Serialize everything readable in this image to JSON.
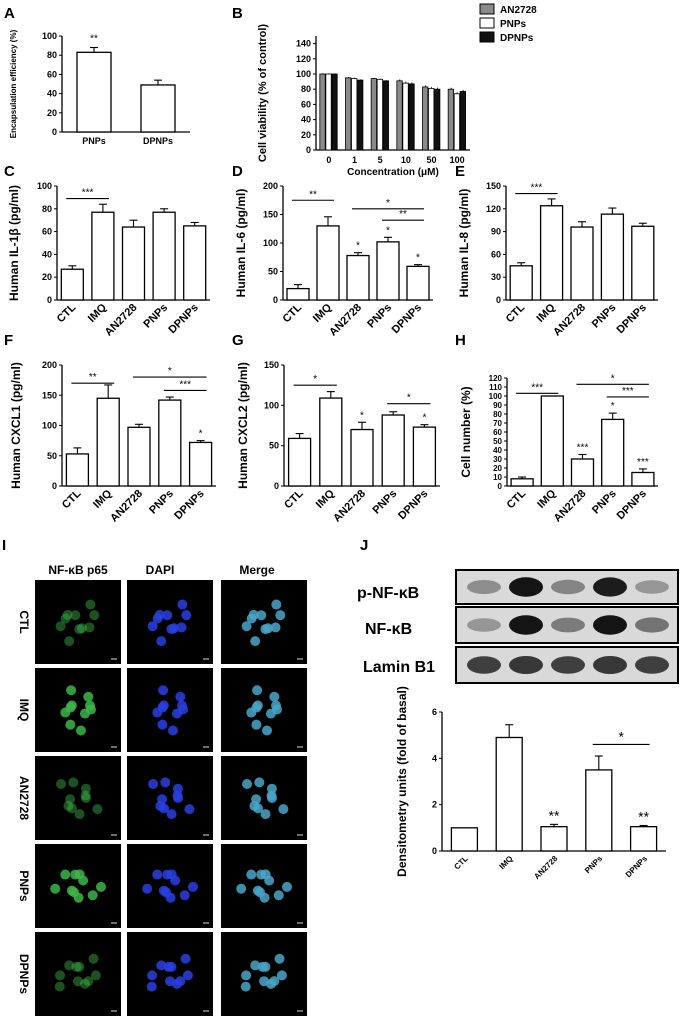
{
  "colors": {
    "AN2728": "#8a8a8a",
    "PNPs": "#ffffff",
    "DPNPs": "#111111",
    "micro_bg": "#000000",
    "green_stain": "#3db54a",
    "blue_stain": "#2a3fe0",
    "merge_stain": "#4aa6c8"
  },
  "chart_data": [
    {
      "panel": "A",
      "type": "bar",
      "categories": [
        "PNPs",
        "DPNPs"
      ],
      "values": [
        83,
        49
      ],
      "errors": [
        5,
        5
      ],
      "ylabel": "Encapsulation efficiency (%)",
      "xlabel": "",
      "ylim": [
        0,
        100
      ],
      "yticks": [
        0,
        20,
        40,
        60,
        80,
        100
      ],
      "annotations": [
        {
          "label": "**",
          "category": "PNPs"
        }
      ]
    },
    {
      "panel": "B",
      "type": "bar",
      "categories": [
        "0",
        "1",
        "5",
        "10",
        "50",
        "100"
      ],
      "xlabel": "Concentration (μM)",
      "ylabel": "Cell viability (% of control)",
      "ylim": [
        0,
        150
      ],
      "yticks": [
        0,
        20,
        40,
        60,
        80,
        100,
        120,
        140
      ],
      "legend": "top-right",
      "series": [
        {
          "name": "AN2728",
          "values": [
            100,
            95,
            94,
            91,
            83,
            80
          ],
          "errors": [
            1,
            1,
            1,
            2,
            2,
            2
          ]
        },
        {
          "name": "PNPs",
          "values": [
            100,
            94,
            93,
            88,
            81,
            74
          ],
          "errors": [
            1,
            1,
            1,
            2,
            2,
            2
          ]
        },
        {
          "name": "DPNPs",
          "values": [
            100,
            92,
            91,
            87,
            80,
            77
          ],
          "errors": [
            1,
            1,
            1,
            2,
            2,
            2
          ]
        }
      ]
    },
    {
      "panel": "C",
      "type": "bar",
      "categories": [
        "CTL",
        "IMQ",
        "AN2728",
        "PNPs",
        "DPNPs"
      ],
      "values": [
        27,
        77,
        64,
        77,
        65
      ],
      "errors": [
        3,
        7,
        6,
        3,
        3
      ],
      "ylabel": "Human IL-1β (pg/ml)",
      "ylim": [
        0,
        100
      ],
      "yticks": [
        0,
        20,
        40,
        60,
        80,
        100
      ],
      "lines": [
        {
          "from": 0,
          "to": 1,
          "label": "***",
          "y": 89
        }
      ],
      "stars": []
    },
    {
      "panel": "D",
      "type": "bar",
      "categories": [
        "CTL",
        "IMQ",
        "AN2728",
        "PNPs",
        "DPNPs"
      ],
      "values": [
        20,
        130,
        78,
        102,
        59
      ],
      "errors": [
        7,
        16,
        5,
        8,
        3
      ],
      "ylabel": "Human IL-6 (pg/ml)",
      "ylim": [
        0,
        200
      ],
      "yticks": [
        0,
        50,
        100,
        150,
        200
      ],
      "lines": [
        {
          "from": 0,
          "to": 1,
          "label": "**",
          "y": 175
        },
        {
          "from": 2,
          "to": 4,
          "label": "*",
          "y": 160
        },
        {
          "from": 3,
          "to": 4,
          "label": "**",
          "y": 140
        }
      ],
      "stars": [
        {
          "index": 2,
          "label": "*"
        },
        {
          "index": 3,
          "label": "*"
        },
        {
          "index": 4,
          "label": "*"
        }
      ]
    },
    {
      "panel": "E",
      "type": "bar",
      "categories": [
        "CTL",
        "IMQ",
        "AN2728",
        "PNPs",
        "DPNPs"
      ],
      "values": [
        45,
        124,
        96,
        113,
        97
      ],
      "errors": [
        4,
        9,
        7,
        8,
        4
      ],
      "ylabel": "Human IL-8 (pg/ml)",
      "ylim": [
        0,
        150
      ],
      "yticks": [
        0,
        30,
        60,
        90,
        120,
        150
      ],
      "lines": [
        {
          "from": 0,
          "to": 1,
          "label": "***",
          "y": 140
        }
      ],
      "stars": []
    },
    {
      "panel": "F",
      "type": "bar",
      "categories": [
        "CTL",
        "IMQ",
        "AN2728",
        "PNPs",
        "DPNPs"
      ],
      "values": [
        53,
        145,
        97,
        142,
        72
      ],
      "errors": [
        10,
        22,
        5,
        5,
        3
      ],
      "ylabel": "Human CXCL1 (pg/ml)",
      "ylim": [
        0,
        200
      ],
      "yticks": [
        0,
        50,
        100,
        150,
        200
      ],
      "lines": [
        {
          "from": 0,
          "to": 1,
          "label": "**",
          "y": 170
        },
        {
          "from": 2,
          "to": 4,
          "label": "*",
          "y": 180
        },
        {
          "from": 3,
          "to": 4,
          "label": "***",
          "y": 158
        }
      ],
      "stars": [
        {
          "index": 4,
          "label": "*"
        }
      ]
    },
    {
      "panel": "G",
      "type": "bar",
      "categories": [
        "CTL",
        "IMQ",
        "AN2728",
        "PNPs",
        "DPNPs"
      ],
      "values": [
        59,
        109,
        70,
        88,
        73
      ],
      "errors": [
        6,
        8,
        9,
        4,
        3
      ],
      "ylabel": "Human CXCL2 (pg/ml)",
      "ylim": [
        0,
        150
      ],
      "yticks": [
        0,
        50,
        100,
        150
      ],
      "lines": [
        {
          "from": 0,
          "to": 1,
          "label": "*",
          "y": 125
        },
        {
          "from": 3,
          "to": 4,
          "label": "*",
          "y": 102
        }
      ],
      "stars": [
        {
          "index": 2,
          "label": "*"
        },
        {
          "index": 4,
          "label": "*"
        }
      ]
    },
    {
      "panel": "H",
      "type": "bar",
      "categories": [
        "CTL",
        "IMQ",
        "AN2728",
        "PNPs",
        "DPNPs"
      ],
      "values": [
        8,
        100,
        30,
        74,
        15
      ],
      "errors": [
        2,
        0,
        5,
        7,
        4
      ],
      "ylabel": "Cell number (%)",
      "ylim": [
        0,
        120
      ],
      "yticks": [
        0,
        10,
        20,
        30,
        40,
        50,
        60,
        70,
        80,
        90,
        100,
        110,
        120
      ],
      "lines": [
        {
          "from": 0,
          "to": 1,
          "label": "***",
          "y": 103
        },
        {
          "from": 2,
          "to": 4,
          "label": "*",
          "y": 113
        },
        {
          "from": 3,
          "to": 4,
          "label": "***",
          "y": 99
        }
      ],
      "stars": [
        {
          "index": 2,
          "label": "***"
        },
        {
          "index": 3,
          "label": "*"
        },
        {
          "index": 4,
          "label": "***"
        }
      ]
    },
    {
      "panel": "J",
      "type": "bar",
      "categories": [
        "CTL",
        "IMQ",
        "AN2728",
        "PNPs",
        "DPNPs"
      ],
      "values": [
        1.0,
        4.9,
        1.05,
        3.5,
        1.05
      ],
      "errors": [
        0,
        0.55,
        0.1,
        0.6,
        0.05
      ],
      "ylabel": "Densitometry units (fold of basal)",
      "ylim": [
        0,
        6
      ],
      "yticks": [
        0,
        2,
        4,
        6
      ],
      "lines": [
        {
          "from": 3,
          "to": 4,
          "label": "*",
          "y": 4.6
        }
      ],
      "stars": [
        {
          "index": 2,
          "label": "**"
        },
        {
          "index": 4,
          "label": "**"
        }
      ]
    }
  ],
  "panel_I": {
    "letter": "I",
    "columns": [
      "NF-κB p65",
      "DAPI",
      "Merge"
    ],
    "rows": [
      "CTL",
      "IMQ",
      "AN2728",
      "PNPs",
      "DPNPs"
    ]
  },
  "panel_J": {
    "letter": "J",
    "blot_labels": [
      "p-NF-κB",
      "NF-κB",
      "Lamin B1"
    ]
  }
}
